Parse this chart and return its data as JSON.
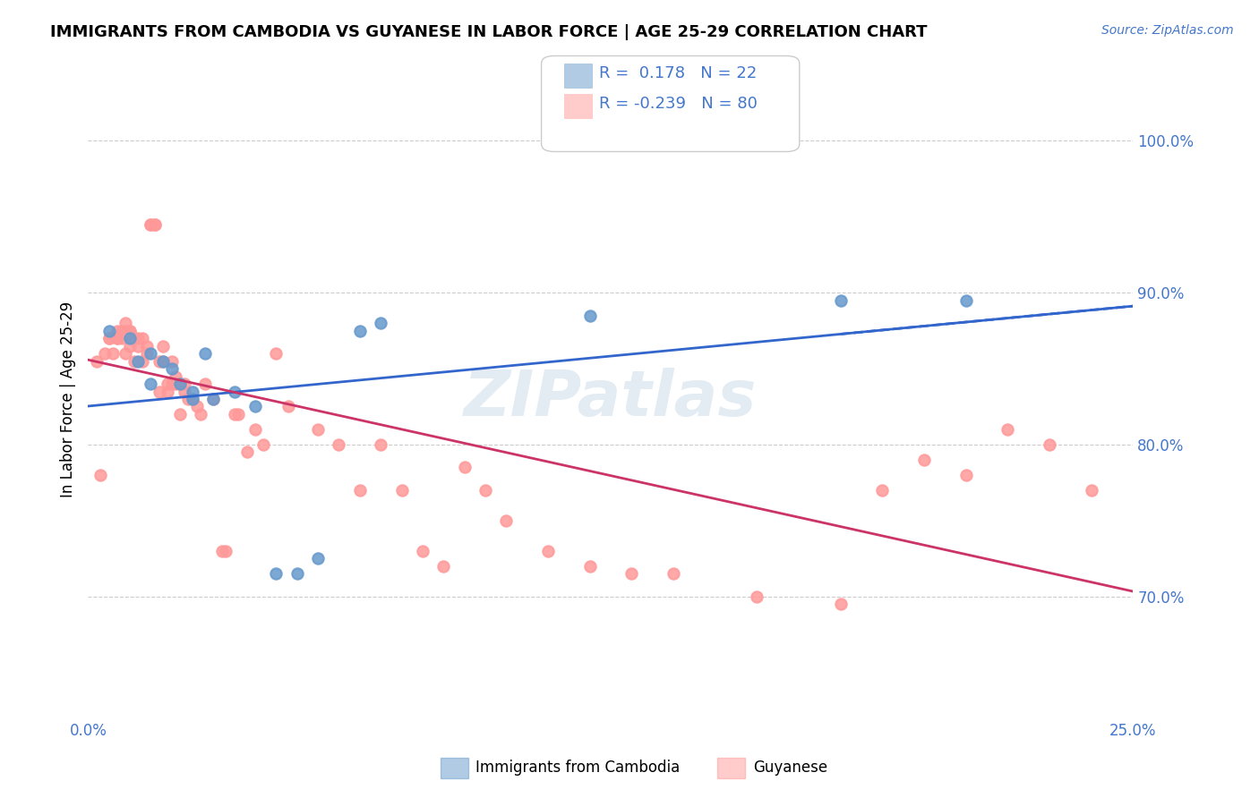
{
  "title": "IMMIGRANTS FROM CAMBODIA VS GUYANESE IN LABOR FORCE | AGE 25-29 CORRELATION CHART",
  "source_text": "Source: ZipAtlas.com",
  "xlabel": "",
  "ylabel": "In Labor Force | Age 25-29",
  "xlim": [
    0.0,
    0.25
  ],
  "ylim": [
    0.62,
    1.04
  ],
  "ytick_labels": [
    "70.0%",
    "80.0%",
    "90.0%",
    "100.0%"
  ],
  "ytick_values": [
    0.7,
    0.8,
    0.9,
    1.0
  ],
  "xtick_labels": [
    "0.0%",
    "25.0%"
  ],
  "xtick_values": [
    0.0,
    0.25
  ],
  "cambodia_color": "#6699cc",
  "guyanese_color": "#ff9999",
  "cambodia_line_color": "#3366cc",
  "guyanese_line_color": "#cc3366",
  "legend_box_color": "#ffffff",
  "grid_color": "#cccccc",
  "axis_color": "#4477cc",
  "watermark_text": "ZIPatlas",
  "legend_R_cambodia": "0.178",
  "legend_N_cambodia": "22",
  "legend_R_guyanese": "-0.239",
  "legend_N_guyanese": "80",
  "cambodia_scatter_x": [
    0.005,
    0.01,
    0.012,
    0.015,
    0.015,
    0.018,
    0.02,
    0.022,
    0.025,
    0.025,
    0.028,
    0.03,
    0.035,
    0.04,
    0.045,
    0.05,
    0.055,
    0.065,
    0.07,
    0.12,
    0.18,
    0.21
  ],
  "cambodia_scatter_y": [
    0.875,
    0.87,
    0.855,
    0.86,
    0.84,
    0.855,
    0.85,
    0.84,
    0.835,
    0.83,
    0.86,
    0.83,
    0.835,
    0.825,
    0.715,
    0.715,
    0.725,
    0.875,
    0.88,
    0.885,
    0.895,
    0.895
  ],
  "guyanese_scatter_x": [
    0.002,
    0.003,
    0.004,
    0.005,
    0.005,
    0.006,
    0.007,
    0.007,
    0.007,
    0.008,
    0.008,
    0.009,
    0.009,
    0.009,
    0.01,
    0.01,
    0.01,
    0.011,
    0.011,
    0.012,
    0.012,
    0.013,
    0.013,
    0.014,
    0.014,
    0.015,
    0.015,
    0.016,
    0.016,
    0.017,
    0.017,
    0.018,
    0.018,
    0.019,
    0.019,
    0.02,
    0.02,
    0.021,
    0.021,
    0.022,
    0.022,
    0.023,
    0.023,
    0.024,
    0.025,
    0.026,
    0.027,
    0.028,
    0.03,
    0.032,
    0.033,
    0.035,
    0.036,
    0.038,
    0.04,
    0.042,
    0.045,
    0.048,
    0.055,
    0.06,
    0.065,
    0.07,
    0.075,
    0.08,
    0.085,
    0.09,
    0.095,
    0.1,
    0.11,
    0.12,
    0.13,
    0.14,
    0.16,
    0.18,
    0.19,
    0.2,
    0.21,
    0.22,
    0.23,
    0.24
  ],
  "guyanese_scatter_y": [
    0.855,
    0.78,
    0.86,
    0.87,
    0.87,
    0.86,
    0.87,
    0.875,
    0.87,
    0.87,
    0.875,
    0.875,
    0.86,
    0.88,
    0.875,
    0.875,
    0.865,
    0.855,
    0.87,
    0.87,
    0.865,
    0.855,
    0.87,
    0.865,
    0.86,
    0.945,
    0.945,
    0.945,
    0.945,
    0.855,
    0.835,
    0.865,
    0.855,
    0.835,
    0.84,
    0.855,
    0.84,
    0.845,
    0.84,
    0.84,
    0.82,
    0.84,
    0.835,
    0.83,
    0.83,
    0.825,
    0.82,
    0.84,
    0.83,
    0.73,
    0.73,
    0.82,
    0.82,
    0.795,
    0.81,
    0.8,
    0.86,
    0.825,
    0.81,
    0.8,
    0.77,
    0.8,
    0.77,
    0.73,
    0.72,
    0.785,
    0.77,
    0.75,
    0.73,
    0.72,
    0.715,
    0.715,
    0.7,
    0.695,
    0.77,
    0.79,
    0.78,
    0.81,
    0.8,
    0.77
  ]
}
